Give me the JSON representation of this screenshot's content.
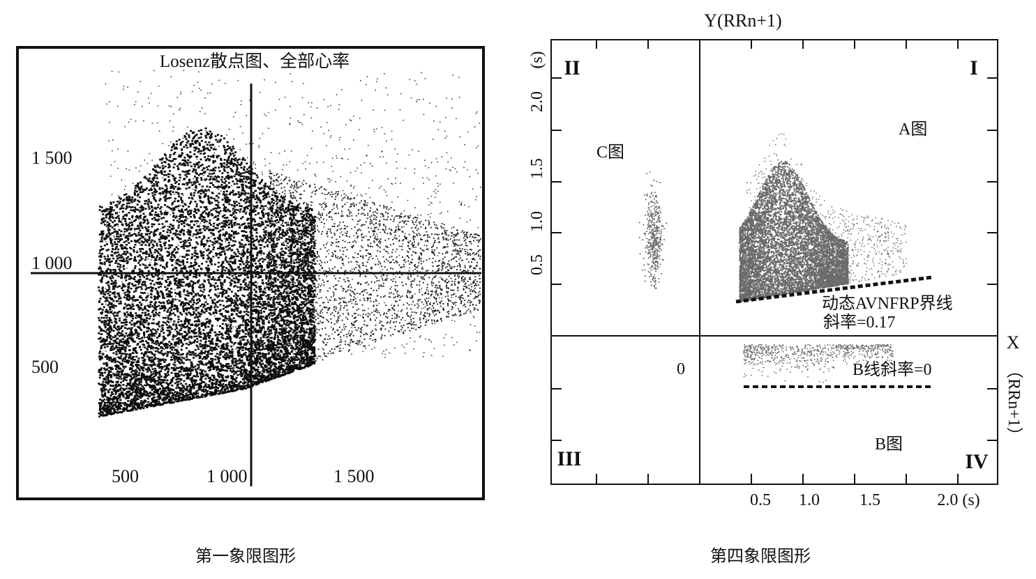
{
  "colors": {
    "ink": "#111111",
    "cloud_left": "#0d0d0d",
    "cloud_right": "#6a6a6a"
  },
  "left_chart": {
    "title": "Losenz散点图、全部心率",
    "caption": "第一象限图形",
    "x_ticks": [
      "500",
      "1 000",
      "1 500"
    ],
    "y_ticks": [
      "1 500",
      "1 000",
      "500"
    ]
  },
  "right_chart": {
    "caption": "第四象限图形",
    "y_axis_title": "Y(RRn+1)",
    "y_unit": "(s)",
    "y_ticks": [
      "0.5",
      "1.0",
      "1.5",
      "2.0"
    ],
    "x_ticks": [
      "0.5",
      "1.0",
      "1.5"
    ],
    "x_last_tick": "2.0 (s)",
    "x_axis_title": "X",
    "x_axis_sub": "（RRn+1）",
    "origin": "0",
    "quadrants": {
      "q1": "I",
      "q2": "II",
      "q3": "III",
      "q4": "IV"
    },
    "ann_a": "A图",
    "ann_b": "B图",
    "ann_c": "C图",
    "ann_line": "动态AVNFRP界线",
    "ann_slope": "斜率=0.17",
    "ann_b_slope": "B线斜率=0"
  },
  "chart_data": [
    {
      "type": "scatter",
      "title": "Losenz散点图、全部心率",
      "xlabel": "",
      "ylabel": "",
      "xlim": [
        300,
        2100
      ],
      "ylim": [
        200,
        2100
      ],
      "x_ticks": [
        500,
        1000,
        1500
      ],
      "y_ticks": [
        500,
        1000,
        1500
      ],
      "crosshair": {
        "x": 1000,
        "y": 1000
      },
      "point_cloud": {
        "min_x": 350,
        "max_x": 2050,
        "core_x": [
          350,
          1300
        ],
        "core_y": [
          300,
          1300
        ],
        "lower_edge": [
          [
            350,
            310
          ],
          [
            1000,
            450
          ],
          [
            1500,
            650
          ],
          [
            2000,
            830
          ]
        ]
      }
    },
    {
      "type": "scatter",
      "title": "",
      "xlabel": "X（RRn+1）",
      "ylabel": "Y(RRn+1)",
      "xlim": [
        -0.85,
        2.35
      ],
      "ylim": [
        -1.45,
        2.95
      ],
      "x_ticks": [
        0.5,
        1.0,
        1.5,
        2.0
      ],
      "y_ticks": [
        0.5,
        1.0,
        1.5,
        2.0
      ],
      "clusters": [
        {
          "name": "A图",
          "quadrant": "I",
          "x_range": [
            0.35,
            2.1
          ],
          "y_range": [
            0.35,
            2.05
          ],
          "core_x": [
            0.4,
            1.3
          ],
          "core_y": [
            0.45,
            1.6
          ]
        },
        {
          "name": "B图",
          "quadrant": "IV",
          "x_range": [
            0.35,
            1.9
          ],
          "y_range": [
            -0.45,
            -0.05
          ]
        },
        {
          "name": "C图",
          "quadrant": "II",
          "x_range": [
            -0.55,
            -0.35
          ],
          "y_range": [
            0.45,
            1.6
          ]
        }
      ],
      "lines": [
        {
          "name": "动态AVNFRP界线",
          "slope": 0.17,
          "points": [
            [
              0.35,
              0.33
            ],
            [
              1.85,
              0.58
            ]
          ]
        },
        {
          "name": "B线",
          "slope": 0,
          "points": [
            [
              0.4,
              0.0
            ],
            [
              1.8,
              0.0
            ]
          ]
        }
      ]
    }
  ]
}
